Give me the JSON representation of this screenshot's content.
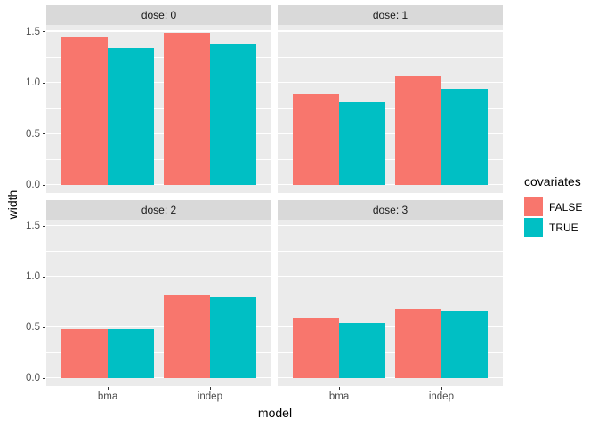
{
  "chart_data": {
    "type": "bar",
    "title": "",
    "xlabel": "model",
    "ylabel": "width",
    "categories": [
      "bma",
      "indep"
    ],
    "facets": [
      {
        "label": "dose: 0",
        "series": [
          {
            "name": "FALSE",
            "values": [
              1.44,
              1.49
            ]
          },
          {
            "name": "TRUE",
            "values": [
              1.34,
              1.38
            ]
          }
        ]
      },
      {
        "label": "dose: 1",
        "series": [
          {
            "name": "FALSE",
            "values": [
              0.89,
              1.07
            ]
          },
          {
            "name": "TRUE",
            "values": [
              0.81,
              0.94
            ]
          }
        ]
      },
      {
        "label": "dose: 2",
        "series": [
          {
            "name": "FALSE",
            "values": [
              0.49,
              0.82
            ]
          },
          {
            "name": "TRUE",
            "values": [
              0.49,
              0.8
            ]
          }
        ]
      },
      {
        "label": "dose: 3",
        "series": [
          {
            "name": "FALSE",
            "values": [
              0.59,
              0.69
            ]
          },
          {
            "name": "TRUE",
            "values": [
              0.55,
              0.66
            ]
          }
        ]
      }
    ],
    "legend": {
      "title": "covariates",
      "position": "right",
      "entries": [
        {
          "label": "FALSE",
          "color": "#F8766D"
        },
        {
          "label": "TRUE",
          "color": "#00BFC4"
        }
      ]
    },
    "y_ticks": [
      0.0,
      0.5,
      1.0,
      1.5
    ],
    "y_tick_labels": [
      "0.0",
      "0.5",
      "1.0",
      "1.5"
    ],
    "y_minor": [
      0.25,
      0.75,
      1.25
    ],
    "ylim": [
      -0.075,
      1.565
    ],
    "grid": true
  },
  "colors": {
    "false_fill": "#F8766D",
    "true_fill": "#00BFC4",
    "panel_bg": "#EBEBEB",
    "strip_bg": "#D9D9D9",
    "gridline": "#FFFFFF",
    "axis_text": "#4D4D4D",
    "strip_text": "#1A1A1A"
  }
}
